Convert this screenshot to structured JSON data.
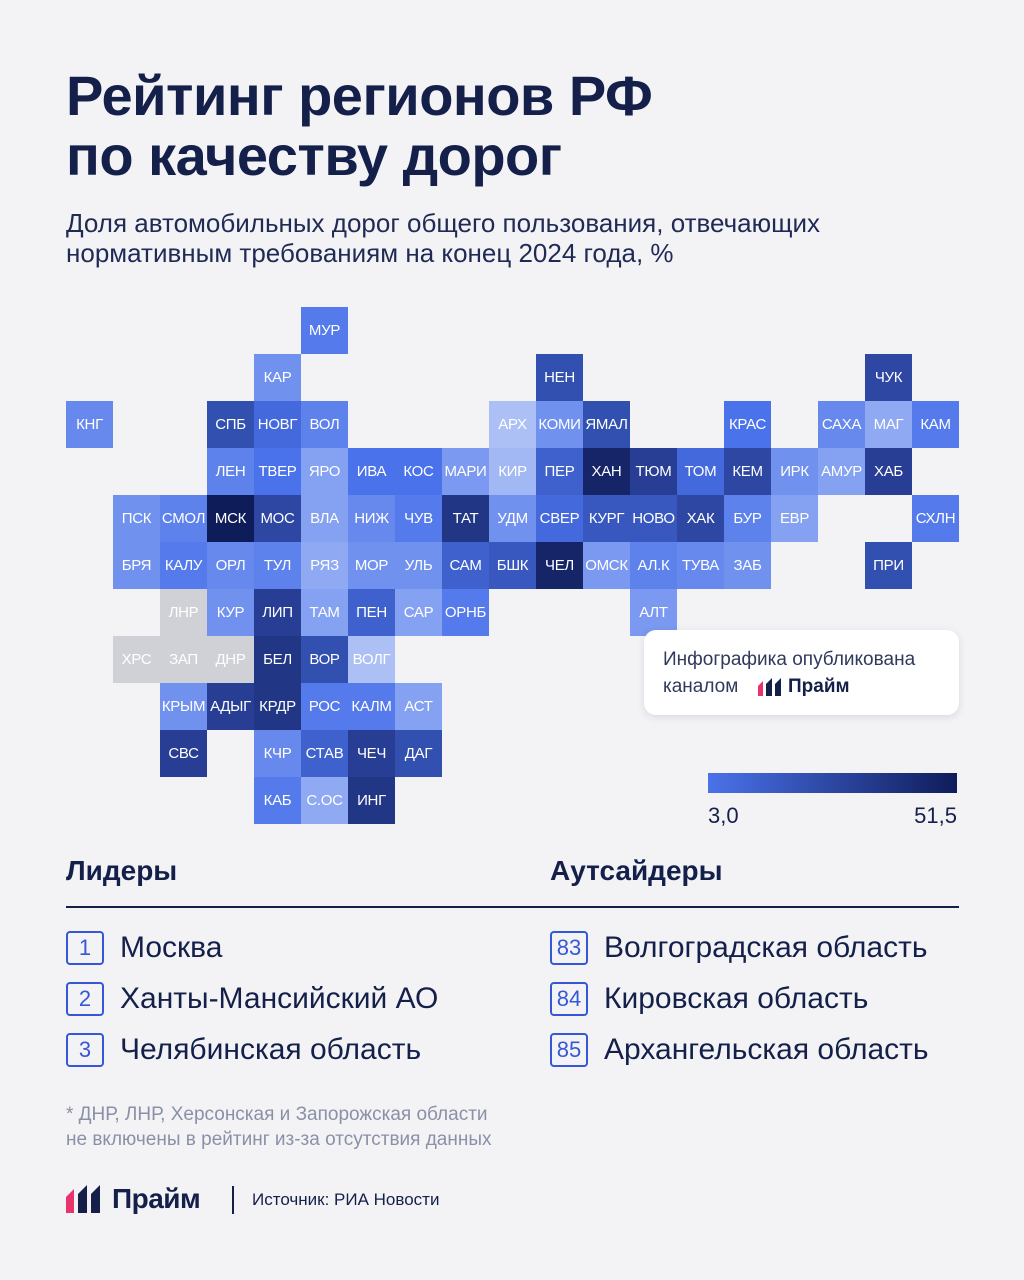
{
  "title_line1": "Рейтинг регионов РФ",
  "title_line2": "по качеству дорог",
  "subtitle_line1": "Доля автомобильных дорог общего пользования, отвечающих",
  "subtitle_line2": "нормативным требованиям на конец 2024 года, %",
  "notice": {
    "line1": "Инфографика опубликована",
    "line2": "каналом",
    "brand": "Прайм"
  },
  "scale": {
    "min": "3,0",
    "max": "51,5"
  },
  "leaders": {
    "title": "Лидеры",
    "items": [
      {
        "rank": "1",
        "name": "Москва"
      },
      {
        "rank": "2",
        "name": "Ханты-Мансийский АО"
      },
      {
        "rank": "3",
        "name": "Челябинская область"
      }
    ]
  },
  "outsiders": {
    "title": "Аутсайдеры",
    "items": [
      {
        "rank": "83",
        "name": "Волгоградская область"
      },
      {
        "rank": "84",
        "name": "Кировская область"
      },
      {
        "rank": "85",
        "name": "Архангельская область"
      }
    ]
  },
  "footnote_line1": "* ДНР, ЛНР, Херсонская и Запорожская области",
  "footnote_line2": "не включены в рейтинг из-за отсутствия данных",
  "brand": "Прайм",
  "source": "Источник: РИА Новости",
  "colors": {
    "low": "#4a72ea",
    "high": "#0f1c5a",
    "no_data": "#cfd1d6"
  },
  "chart_data": {
    "type": "heatmap",
    "scale_range": [
      3.0,
      51.5
    ],
    "cells": [
      {
        "label": "МУР",
        "col": 5,
        "row": 0,
        "level": 0.45
      },
      {
        "label": "КАР",
        "col": 4,
        "row": 1,
        "level": 0.3
      },
      {
        "label": "НЕН",
        "col": 10,
        "row": 1,
        "level": 0.7
      },
      {
        "label": "ЧУК",
        "col": 17,
        "row": 1,
        "level": 0.75
      },
      {
        "label": "КНГ",
        "col": 0,
        "row": 2,
        "level": 0.35
      },
      {
        "label": "СПБ",
        "col": 3,
        "row": 2,
        "level": 0.7
      },
      {
        "label": "НОВГ",
        "col": 4,
        "row": 2,
        "level": 0.55
      },
      {
        "label": "ВОЛ",
        "col": 5,
        "row": 2,
        "level": 0.4
      },
      {
        "label": "АРХ",
        "col": 9,
        "row": 2,
        "level": 0.0
      },
      {
        "label": "КОМИ",
        "col": 10,
        "row": 2,
        "level": 0.3
      },
      {
        "label": "ЯМАЛ",
        "col": 11,
        "row": 2,
        "level": 0.7
      },
      {
        "label": "КРАС",
        "col": 14,
        "row": 2,
        "level": 0.5
      },
      {
        "label": "САХА",
        "col": 16,
        "row": 2,
        "level": 0.35
      },
      {
        "label": "МАГ",
        "col": 17,
        "row": 2,
        "level": 0.15
      },
      {
        "label": "КАМ",
        "col": 18,
        "row": 2,
        "level": 0.45
      },
      {
        "label": "ЛЕН",
        "col": 3,
        "row": 3,
        "level": 0.4
      },
      {
        "label": "ТВЕР",
        "col": 4,
        "row": 3,
        "level": 0.5
      },
      {
        "label": "ЯРО",
        "col": 5,
        "row": 3,
        "level": 0.2
      },
      {
        "label": "ИВА",
        "col": 6,
        "row": 3,
        "level": 0.5
      },
      {
        "label": "КОС",
        "col": 7,
        "row": 3,
        "level": 0.5
      },
      {
        "label": "МАРИ",
        "col": 8,
        "row": 3,
        "level": 0.25
      },
      {
        "label": "КИР",
        "col": 9,
        "row": 3,
        "level": 0.05
      },
      {
        "label": "ПЕР",
        "col": 10,
        "row": 3,
        "level": 0.6
      },
      {
        "label": "ХАН",
        "col": 11,
        "row": 3,
        "level": 0.95
      },
      {
        "label": "ТЮМ",
        "col": 12,
        "row": 3,
        "level": 0.8
      },
      {
        "label": "ТОМ",
        "col": 13,
        "row": 3,
        "level": 0.55
      },
      {
        "label": "КЕМ",
        "col": 14,
        "row": 3,
        "level": 0.75
      },
      {
        "label": "ИРК",
        "col": 15,
        "row": 3,
        "level": 0.3
      },
      {
        "label": "АМУР",
        "col": 16,
        "row": 3,
        "level": 0.2
      },
      {
        "label": "ХАБ",
        "col": 17,
        "row": 3,
        "level": 0.8
      },
      {
        "label": "ПСК",
        "col": 1,
        "row": 4,
        "level": 0.3
      },
      {
        "label": "СМОЛ",
        "col": 2,
        "row": 4,
        "level": 0.4
      },
      {
        "label": "МСК",
        "col": 3,
        "row": 4,
        "level": 1.0
      },
      {
        "label": "МОС",
        "col": 4,
        "row": 4,
        "level": 0.75
      },
      {
        "label": "ВЛА",
        "col": 5,
        "row": 4,
        "level": 0.2
      },
      {
        "label": "НИЖ",
        "col": 6,
        "row": 4,
        "level": 0.35
      },
      {
        "label": "ЧУВ",
        "col": 7,
        "row": 4,
        "level": 0.45
      },
      {
        "label": "ТАТ",
        "col": 8,
        "row": 4,
        "level": 0.85
      },
      {
        "label": "УДМ",
        "col": 9,
        "row": 4,
        "level": 0.3
      },
      {
        "label": "СВЕР",
        "col": 10,
        "row": 4,
        "level": 0.55
      },
      {
        "label": "КУРГ",
        "col": 11,
        "row": 4,
        "level": 0.65
      },
      {
        "label": "НОВО",
        "col": 12,
        "row": 4,
        "level": 0.65
      },
      {
        "label": "ХАК",
        "col": 13,
        "row": 4,
        "level": 0.75
      },
      {
        "label": "БУР",
        "col": 14,
        "row": 4,
        "level": 0.4
      },
      {
        "label": "ЕВР",
        "col": 15,
        "row": 4,
        "level": 0.2
      },
      {
        "label": "СХЛН",
        "col": 18,
        "row": 4,
        "level": 0.45
      },
      {
        "label": "БРЯ",
        "col": 1,
        "row": 5,
        "level": 0.3
      },
      {
        "label": "КАЛУ",
        "col": 2,
        "row": 5,
        "level": 0.45
      },
      {
        "label": "ОРЛ",
        "col": 3,
        "row": 5,
        "level": 0.35
      },
      {
        "label": "ТУЛ",
        "col": 4,
        "row": 5,
        "level": 0.4
      },
      {
        "label": "РЯЗ",
        "col": 5,
        "row": 5,
        "level": 0.15
      },
      {
        "label": "МОР",
        "col": 6,
        "row": 5,
        "level": 0.3
      },
      {
        "label": "УЛЬ",
        "col": 7,
        "row": 5,
        "level": 0.3
      },
      {
        "label": "САМ",
        "col": 8,
        "row": 5,
        "level": 0.6
      },
      {
        "label": "БШК",
        "col": 9,
        "row": 5,
        "level": 0.65
      },
      {
        "label": "ЧЕЛ",
        "col": 10,
        "row": 5,
        "level": 0.95
      },
      {
        "label": "ОМСК",
        "col": 11,
        "row": 5,
        "level": 0.25
      },
      {
        "label": "АЛ.К",
        "col": 12,
        "row": 5,
        "level": 0.4
      },
      {
        "label": "ТУВА",
        "col": 13,
        "row": 5,
        "level": 0.35
      },
      {
        "label": "ЗАБ",
        "col": 14,
        "row": 5,
        "level": 0.3
      },
      {
        "label": "ПРИ",
        "col": 17,
        "row": 5,
        "level": 0.7
      },
      {
        "label": "ЛНР",
        "col": 2,
        "row": 6,
        "level": null
      },
      {
        "label": "КУР",
        "col": 3,
        "row": 6,
        "level": 0.3
      },
      {
        "label": "ЛИП",
        "col": 4,
        "row": 6,
        "level": 0.8
      },
      {
        "label": "ТАМ",
        "col": 5,
        "row": 6,
        "level": 0.2
      },
      {
        "label": "ПЕН",
        "col": 6,
        "row": 6,
        "level": 0.6
      },
      {
        "label": "САР",
        "col": 7,
        "row": 6,
        "level": 0.2
      },
      {
        "label": "ОРНБ",
        "col": 8,
        "row": 6,
        "level": 0.45
      },
      {
        "label": "АЛТ",
        "col": 12,
        "row": 6,
        "level": 0.25
      },
      {
        "label": "ХРС",
        "col": 1,
        "row": 7,
        "level": null
      },
      {
        "label": "ЗАП",
        "col": 2,
        "row": 7,
        "level": null
      },
      {
        "label": "ДНР",
        "col": 3,
        "row": 7,
        "level": null
      },
      {
        "label": "БЕЛ",
        "col": 4,
        "row": 7,
        "level": 0.85
      },
      {
        "label": "ВОР",
        "col": 5,
        "row": 7,
        "level": 0.7
      },
      {
        "label": "ВОЛГ",
        "col": 6,
        "row": 7,
        "level": 0.0
      },
      {
        "label": "КРЫМ",
        "col": 2,
        "row": 8,
        "level": 0.3
      },
      {
        "label": "АДЫГ",
        "col": 3,
        "row": 8,
        "level": 0.8
      },
      {
        "label": "КРДР",
        "col": 4,
        "row": 8,
        "level": 0.85
      },
      {
        "label": "РОС",
        "col": 5,
        "row": 8,
        "level": 0.45
      },
      {
        "label": "КАЛМ",
        "col": 6,
        "row": 8,
        "level": 0.45
      },
      {
        "label": "АСТ",
        "col": 7,
        "row": 8,
        "level": 0.2
      },
      {
        "label": "СВС",
        "col": 2,
        "row": 9,
        "level": 0.8
      },
      {
        "label": "КЧР",
        "col": 4,
        "row": 9,
        "level": 0.35
      },
      {
        "label": "СТАВ",
        "col": 5,
        "row": 9,
        "level": 0.6
      },
      {
        "label": "ЧЕЧ",
        "col": 6,
        "row": 9,
        "level": 0.8
      },
      {
        "label": "ДАГ",
        "col": 7,
        "row": 9,
        "level": 0.7
      },
      {
        "label": "КАБ",
        "col": 4,
        "row": 10,
        "level": 0.45
      },
      {
        "label": "С.ОС",
        "col": 5,
        "row": 10,
        "level": 0.15
      },
      {
        "label": "ИНГ",
        "col": 6,
        "row": 10,
        "level": 0.85
      }
    ]
  }
}
